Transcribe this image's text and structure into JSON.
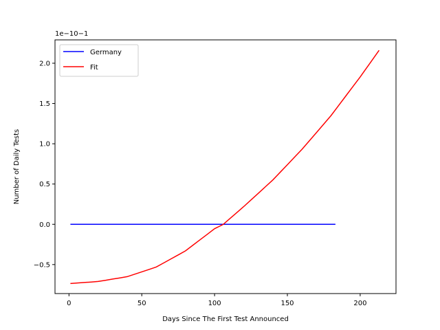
{
  "chart_data": {
    "type": "line",
    "title": "",
    "xlabel": "Days Since The First Test Announced",
    "ylabel": "Number of Daily Tests",
    "offset_text": "1e−10−1",
    "xlim": [
      -9.6,
      224.6
    ],
    "ylim": [
      -0.86,
      2.29
    ],
    "xticks": [
      0,
      50,
      100,
      150,
      200
    ],
    "xtick_labels": [
      "0",
      "50",
      "100",
      "150",
      "200"
    ],
    "yticks": [
      -0.5,
      0.0,
      0.5,
      1.0,
      1.5,
      2.0
    ],
    "ytick_labels": [
      "−0.5",
      "0.0",
      "0.5",
      "1.0",
      "1.5",
      "2.0"
    ],
    "grid": false,
    "legend_position": "upper-left",
    "series": [
      {
        "name": "Germany",
        "color": "#0000ff",
        "x": [
          1,
          183
        ],
        "y": [
          0.0,
          0.0
        ]
      },
      {
        "name": "Fit",
        "color": "#ff0000",
        "x": [
          1,
          20,
          40,
          60,
          80,
          100,
          106,
          120,
          140,
          160,
          180,
          200,
          213
        ],
        "y": [
          -0.735,
          -0.71,
          -0.65,
          -0.53,
          -0.33,
          -0.055,
          0.0,
          0.22,
          0.55,
          0.93,
          1.35,
          1.83,
          2.16
        ]
      }
    ]
  }
}
